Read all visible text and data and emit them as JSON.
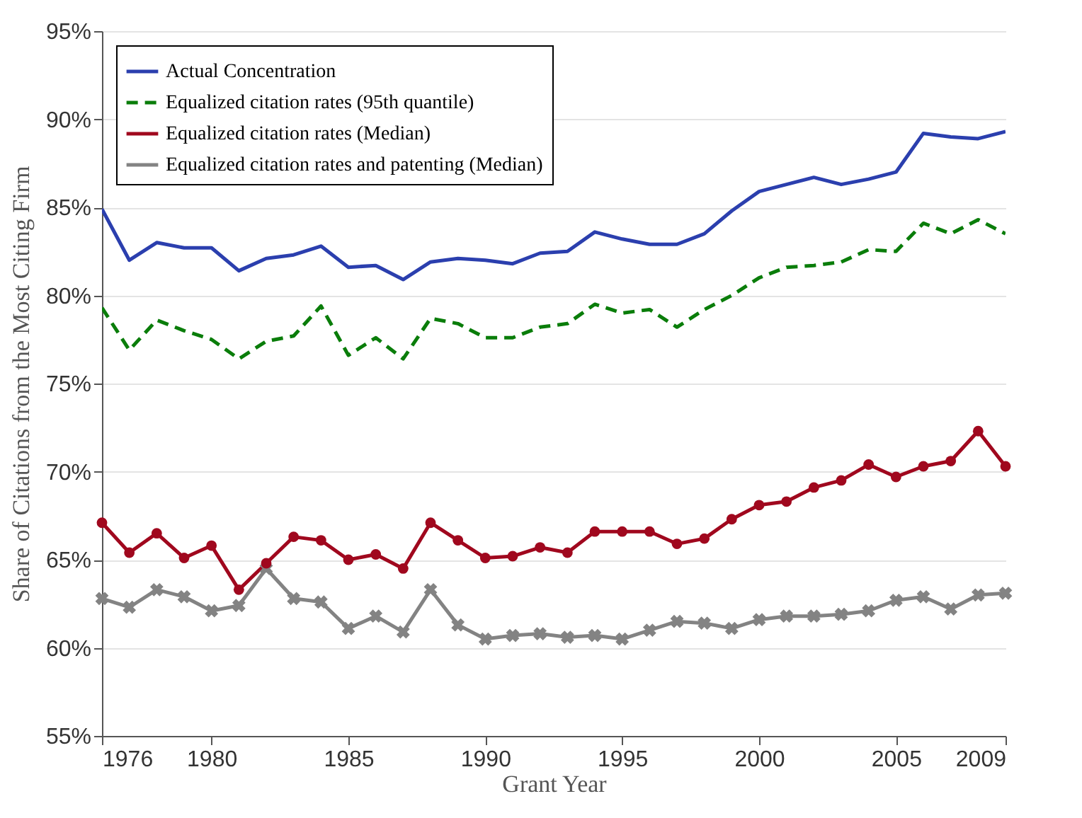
{
  "chart_data": {
    "type": "line",
    "xlabel": "Grant Year",
    "ylabel": "Share of Citations from the Most Citing Firm",
    "x": [
      1976,
      1977,
      1978,
      1979,
      1980,
      1981,
      1982,
      1983,
      1984,
      1985,
      1986,
      1987,
      1988,
      1989,
      1990,
      1991,
      1992,
      1993,
      1994,
      1995,
      1996,
      1997,
      1998,
      1999,
      2000,
      2001,
      2002,
      2003,
      2004,
      2005,
      2006,
      2007,
      2008,
      2009
    ],
    "xlim": [
      1976,
      2009
    ],
    "xticks": [
      1976,
      1980,
      1985,
      1990,
      1995,
      2000,
      2005,
      2009
    ],
    "ylim": [
      55,
      95
    ],
    "yticks": [
      {
        "value": 55,
        "label": "55%"
      },
      {
        "value": 60,
        "label": "60%"
      },
      {
        "value": 65,
        "label": "65%"
      },
      {
        "value": 70,
        "label": "70%"
      },
      {
        "value": 75,
        "label": "75%"
      },
      {
        "value": 80,
        "label": "80%"
      },
      {
        "value": 85,
        "label": "85%"
      },
      {
        "value": 90,
        "label": "90%"
      },
      {
        "value": 95,
        "label": "95%"
      }
    ],
    "grid": "y",
    "legend": "top left",
    "series": [
      {
        "name": "Actual Concentration",
        "color": "#2b3fae",
        "line_style": "solid",
        "marker": "none",
        "values": [
          84.9,
          82.0,
          83.0,
          82.7,
          82.7,
          81.4,
          82.1,
          82.3,
          82.8,
          81.6,
          81.7,
          80.9,
          81.9,
          82.1,
          82.0,
          81.8,
          82.4,
          82.5,
          83.6,
          83.2,
          82.9,
          82.9,
          83.5,
          84.8,
          85.9,
          86.3,
          86.7,
          86.3,
          86.6,
          87.0,
          89.2,
          89.0,
          88.9,
          89.3
        ]
      },
      {
        "name": "Equalized citation rates (95th quantile)",
        "color": "#0a7d0a",
        "line_style": "dashed",
        "marker": "none",
        "values": [
          79.3,
          76.9,
          78.6,
          78.0,
          77.5,
          76.4,
          77.4,
          77.7,
          79.4,
          76.6,
          77.6,
          76.4,
          78.7,
          78.4,
          77.6,
          77.6,
          78.2,
          78.4,
          79.5,
          79.0,
          79.2,
          78.2,
          79.2,
          80.0,
          81.0,
          81.6,
          81.7,
          81.9,
          82.6,
          82.5,
          84.1,
          83.5,
          84.3,
          83.5
        ]
      },
      {
        "name": "Equalized citation rates (Median)",
        "color": "#a0081e",
        "line_style": "solid",
        "marker": "circle",
        "values": [
          67.1,
          65.4,
          66.5,
          65.1,
          65.8,
          63.3,
          64.8,
          66.3,
          66.1,
          65.0,
          65.3,
          64.5,
          67.1,
          66.1,
          65.1,
          65.2,
          65.7,
          65.4,
          66.6,
          66.6,
          66.6,
          65.9,
          66.2,
          67.3,
          68.1,
          68.3,
          69.1,
          69.5,
          70.4,
          69.7,
          70.3,
          70.6,
          72.3,
          70.3
        ]
      },
      {
        "name": "Equalized citation rates and patenting (Median)",
        "color": "#838383",
        "line_style": "solid",
        "marker": "cross",
        "values": [
          62.8,
          62.3,
          63.3,
          62.9,
          62.1,
          62.4,
          64.5,
          62.8,
          62.6,
          61.1,
          61.8,
          60.9,
          63.3,
          61.3,
          60.5,
          60.7,
          60.8,
          60.6,
          60.7,
          60.5,
          61.0,
          61.5,
          61.4,
          61.1,
          61.6,
          61.8,
          61.8,
          61.9,
          62.1,
          62.7,
          62.9,
          62.2,
          63.0,
          63.1
        ]
      }
    ]
  }
}
